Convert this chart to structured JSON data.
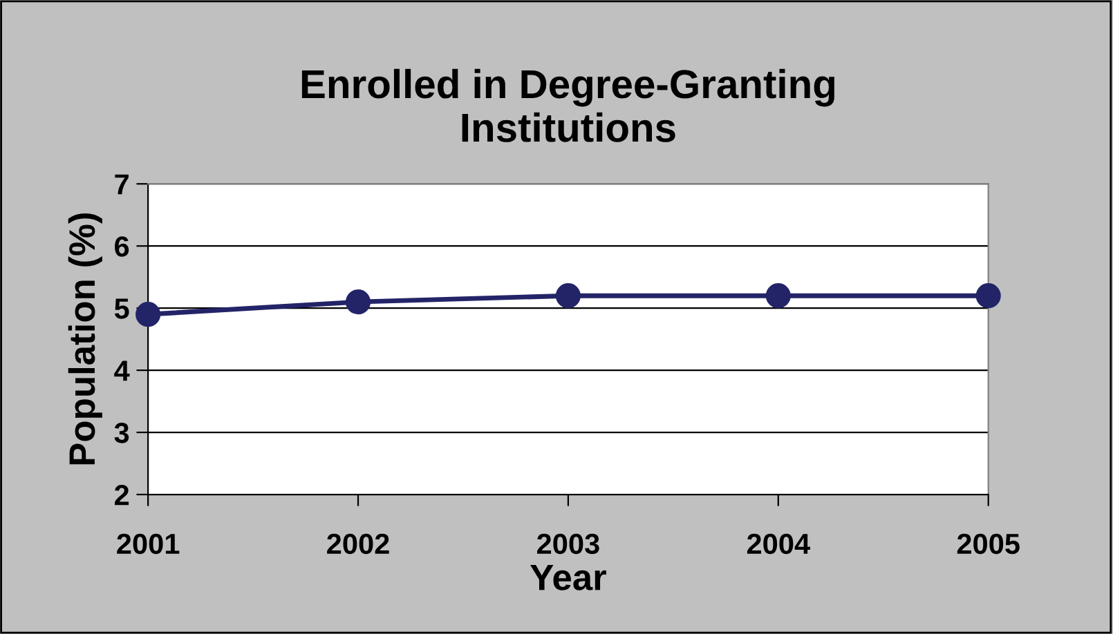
{
  "chart_data": {
    "type": "line",
    "title": "Enrolled in Degree-Granting\nInstitutions",
    "xlabel": "Year",
    "ylabel": "Population (%)",
    "categories": [
      "2001",
      "2002",
      "2003",
      "2004",
      "2005"
    ],
    "series": [
      {
        "color": "#232468",
        "values": [
          4.9,
          5.1,
          5.2,
          5.2,
          5.2
        ]
      }
    ],
    "ylim": [
      2,
      7
    ],
    "yticks": [
      2,
      3,
      4,
      5,
      6,
      7
    ],
    "grid": "y",
    "marker": "circle",
    "line_style": "solid",
    "legend": false
  }
}
